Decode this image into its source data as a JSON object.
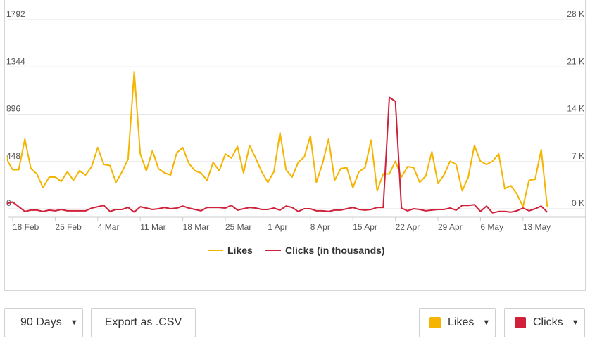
{
  "chart_data": {
    "type": "line",
    "x_ticks": [
      "18 Feb",
      "25 Feb",
      "4 Mar",
      "11 Mar",
      "18 Mar",
      "25 Mar",
      "1 Apr",
      "8 Apr",
      "15 Apr",
      "22 Apr",
      "29 Apr",
      "6 May",
      "13 May"
    ],
    "y_left": {
      "ticks": [
        "0",
        "448",
        "896",
        "1344",
        "1792"
      ],
      "ylim": [
        0,
        1792
      ]
    },
    "y_right": {
      "ticks": [
        "0 K",
        "7 K",
        "14 K",
        "21 K",
        "28 K"
      ],
      "ylim": [
        0,
        28
      ]
    },
    "series": [
      {
        "name": "Likes",
        "color": "#f5b400",
        "axis": "left",
        "values": [
          500,
          450,
          370,
          370,
          660,
          380,
          330,
          200,
          300,
          300,
          260,
          350,
          270,
          360,
          320,
          400,
          580,
          420,
          410,
          250,
          350,
          470,
          1300,
          520,
          360,
          550,
          380,
          340,
          320,
          530,
          580,
          430,
          360,
          340,
          270,
          440,
          360,
          520,
          480,
          590,
          340,
          600,
          480,
          350,
          250,
          350,
          720,
          370,
          300,
          440,
          490,
          690,
          250,
          430,
          660,
          270,
          380,
          390,
          200,
          350,
          390,
          650,
          170,
          330,
          330,
          450,
          300,
          400,
          390,
          250,
          310,
          540,
          240,
          320,
          450,
          420,
          170,
          300,
          600,
          450,
          420,
          450,
          520,
          190,
          220,
          140,
          20,
          270,
          280,
          560,
          20
        ],
        "start_date": "16 Feb"
      },
      {
        "name": "Clicks (in thousands)",
        "color": "#d0203a",
        "axis": "right",
        "values": [
          0.6,
          0.8,
          1.0,
          0.3,
          -0.4,
          -0.2,
          -0.2,
          -0.4,
          -0.2,
          -0.3,
          -0.1,
          -0.3,
          -0.3,
          -0.3,
          -0.3,
          0.1,
          0.3,
          0.5,
          -0.4,
          -0.1,
          -0.1,
          0.2,
          -0.5,
          0.3,
          0.1,
          -0.1,
          0.0,
          0.2,
          0.0,
          0.1,
          0.4,
          0.1,
          -0.1,
          -0.3,
          0.2,
          0.2,
          0.2,
          0.1,
          0.5,
          -0.2,
          0.0,
          0.2,
          0.1,
          -0.1,
          -0.1,
          0.1,
          -0.2,
          0.4,
          0.2,
          -0.4,
          0.0,
          0.0,
          -0.3,
          -0.3,
          -0.4,
          -0.2,
          -0.2,
          0.0,
          0.2,
          -0.1,
          -0.2,
          -0.1,
          0.2,
          0.2,
          16.5,
          15.9,
          0.1,
          -0.3,
          0.0,
          -0.1,
          -0.3,
          -0.2,
          -0.1,
          -0.1,
          0.1,
          -0.2,
          0.5,
          0.5,
          0.6,
          -0.4,
          0.4,
          -0.6,
          -0.4,
          -0.4,
          -0.5,
          -0.3,
          0.1,
          -0.3,
          0.0,
          0.4,
          -0.5
        ],
        "start_date": "16 Feb"
      }
    ],
    "grid": "horizontal",
    "legend_position": "bottom-center"
  },
  "legend": {
    "likes": "Likes",
    "clicks": "Clicks (in thousands)"
  },
  "controls": {
    "range_label": "90 Days",
    "export_label": "Export as .CSV",
    "likes_label": "Likes",
    "clicks_label": "Clicks",
    "likes_color": "#f5b400",
    "clicks_color": "#d0203a"
  }
}
